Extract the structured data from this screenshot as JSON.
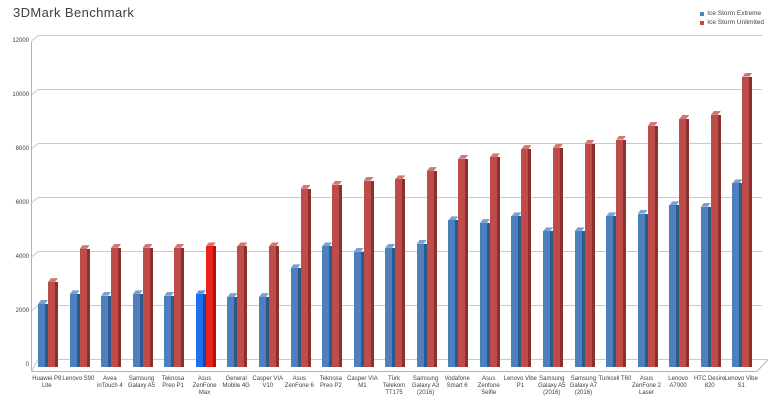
{
  "title": "3DMark Benchmark",
  "legend": [
    {
      "label": "Ice Storm Extreme",
      "color": "#4d80bd"
    },
    {
      "label": "Ice Storm Unlimited",
      "color": "#be4c48"
    }
  ],
  "colors": {
    "gridline": "#c9c9c9",
    "axis": "#b3b3b3",
    "text": "#3f3f3f"
  },
  "chart_data": {
    "type": "bar",
    "title": "3DMark Benchmark",
    "xlabel": "",
    "ylabel": "",
    "ylim": [
      0,
      12000
    ],
    "yticks": [
      0,
      2000,
      4000,
      6000,
      8000,
      10000,
      12000
    ],
    "grid": true,
    "legend_position": "top-right",
    "highlight_category": "Asus ZenFone Max",
    "categories": [
      "Huawei P8 Lite",
      "Lenovo S90",
      "Avea inTouch 4",
      "Samsung Galaxy A5",
      "Teknosa Preo P1",
      "Asus ZenFone Max",
      "General Mobile 4G",
      "Casper VIA V10",
      "Asus ZenFone 6",
      "Teknosa Preo P2",
      "Casper VIA M1",
      "Türk Telekom TT175",
      "Samsung Galaxy A3 (2016)",
      "Vodafone Smart 6",
      "Asus Zenfone Selfie",
      "Lenovo Vibe P1",
      "Samsung Galaxy A5 (2016)",
      "Samsung Galaxy A7 (2016)",
      "Turkcell T60",
      "Asus ZenFone 2 Laser",
      "Lenovo A7000",
      "HTC Desire 820",
      "Lenovo Vibe S1"
    ],
    "series": [
      {
        "name": "Ice Storm Extreme",
        "color": "#4d80bd",
        "color_side": "#31588a",
        "color_top": "#7ba2cf",
        "highlight_color": "#1e6fe8",
        "highlight_side": "#0f4aa8",
        "highlight_top": "#5b97f2",
        "values": [
          2300,
          2650,
          2600,
          2650,
          2600,
          2650,
          2550,
          2550,
          3600,
          4400,
          4200,
          4350,
          4500,
          5350,
          5250,
          5500,
          4950,
          4950,
          5500,
          5600,
          5900,
          5850,
          6700
        ]
      },
      {
        "name": "Ice Storm Unlimited",
        "color": "#be4c48",
        "color_side": "#8b302d",
        "color_top": "#cd7a77",
        "highlight_color": "#e8231c",
        "highlight_side": "#a81510",
        "highlight_top": "#f26560",
        "values": [
          3100,
          4300,
          4350,
          4350,
          4350,
          4400,
          4400,
          4400,
          6500,
          6650,
          6800,
          6850,
          7150,
          7600,
          7650,
          7950,
          8000,
          8150,
          8300,
          8800,
          9050,
          9200,
          10600
        ]
      }
    ]
  }
}
